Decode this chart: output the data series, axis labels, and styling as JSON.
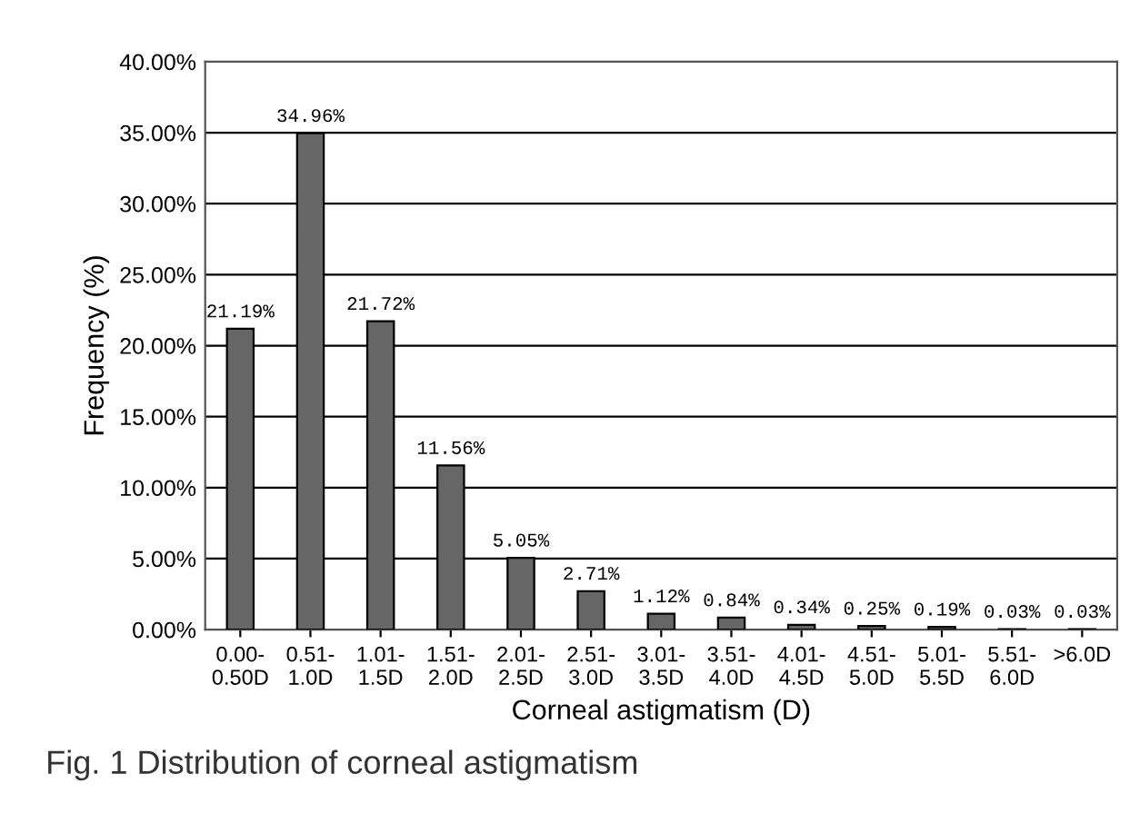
{
  "chart_data": {
    "type": "bar",
    "xlabel": "Corneal astigmatism (D)",
    "ylabel": "Frequency (%)",
    "categories": [
      "0.00-\n0.50D",
      "0.51-\n1.0D",
      "1.01-\n1.5D",
      "1.51-\n2.0D",
      "2.01-\n2.5D",
      "2.51-\n3.0D",
      "3.01-\n3.5D",
      "3.51-\n4.0D",
      "4.01-\n4.5D",
      "4.51-\n5.0D",
      "5.01-\n5.5D",
      "5.51-\n6.0D",
      ">6.0D"
    ],
    "values": [
      21.19,
      34.96,
      21.72,
      11.56,
      5.05,
      2.71,
      1.12,
      0.84,
      0.34,
      0.25,
      0.19,
      0.03,
      0.03
    ],
    "value_labels": [
      "21.19%",
      "34.96%",
      "21.72%",
      "11.56%",
      "5.05%",
      "2.71%",
      "1.12%",
      "0.84%",
      "0.34%",
      "0.25%",
      "0.19%",
      "0.03%",
      "0.03%"
    ],
    "color": "#666666",
    "ylim": [
      0,
      40
    ],
    "yticks": [
      {
        "value": 0,
        "label": "0.00%"
      },
      {
        "value": 5,
        "label": "5.00%"
      },
      {
        "value": 10,
        "label": "10.00%"
      },
      {
        "value": 15,
        "label": "15.00%"
      },
      {
        "value": 20,
        "label": "20.00%"
      },
      {
        "value": 25,
        "label": "25.00%"
      },
      {
        "value": 30,
        "label": "30.00%"
      },
      {
        "value": 35,
        "label": "35.00%"
      },
      {
        "value": 40,
        "label": "40.00%"
      }
    ],
    "grid": "y",
    "annotations": [
      "Fig. 1 Distribution of corneal astigmatism"
    ]
  }
}
